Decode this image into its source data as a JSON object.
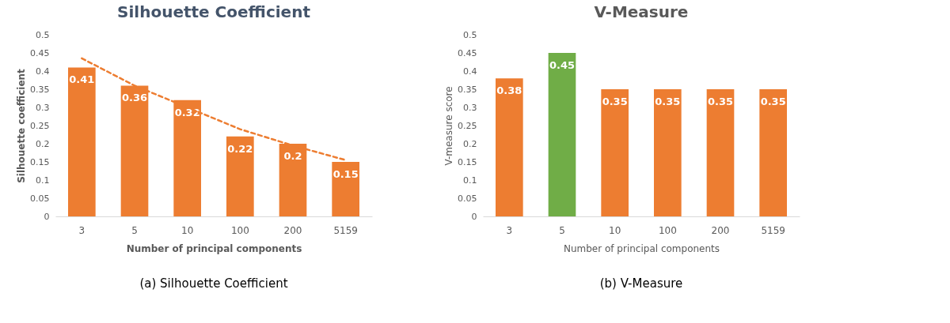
{
  "chart_data": [
    {
      "type": "bar",
      "title": "Silhouette Coefficient",
      "xlabel": "Number of principal components",
      "ylabel": "Silhouette coefficient",
      "categories": [
        "3",
        "5",
        "10",
        "100",
        "200",
        "5159"
      ],
      "series": [
        {
          "color": "#ed7d31",
          "values": [
            0.41,
            0.36,
            0.32,
            0.22,
            0.2,
            0.15
          ],
          "value_labels": [
            "0.41",
            "0.36",
            "0.32",
            "0.22",
            "0.2",
            "0.15"
          ]
        },
        {
          "type": "line",
          "color": "#ed7d31",
          "line_style": "dashed",
          "values": [
            0.435,
            0.36,
            0.3,
            0.24,
            0.195,
            0.155
          ]
        }
      ],
      "ylim": [
        0,
        0.5
      ],
      "yticks": [
        0,
        0.05,
        0.1,
        0.15,
        0.2,
        0.25,
        0.3,
        0.35,
        0.4,
        0.45,
        0.5
      ],
      "annotations": [
        "(a) Silhouette Coefficient"
      ]
    },
    {
      "type": "bar",
      "title": "V-Measure",
      "xlabel": "Number of  principal components",
      "ylabel": "V-measure score",
      "categories": [
        "3",
        "5",
        "10",
        "100",
        "200",
        "5159"
      ],
      "values": [
        0.38,
        0.45,
        0.35,
        0.35,
        0.35,
        0.35
      ],
      "colors": [
        "#ed7d31",
        "#70ad47",
        "#ed7d31",
        "#ed7d31",
        "#ed7d31",
        "#ed7d31"
      ],
      "data_labels": true,
      "ylim": [
        0,
        0.5
      ],
      "yticks": [
        0,
        0.05,
        0.1,
        0.15,
        0.2,
        0.25,
        0.3,
        0.35,
        0.4,
        0.45,
        0.5
      ],
      "annotations": [
        "(b) V-Measure"
      ]
    }
  ]
}
